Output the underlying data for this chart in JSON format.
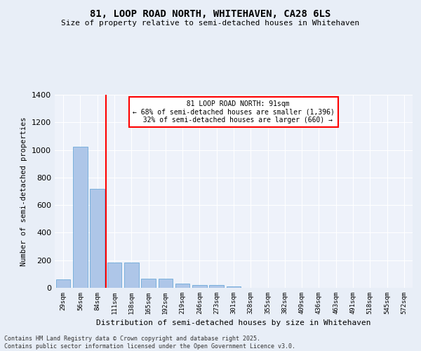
{
  "title": "81, LOOP ROAD NORTH, WHITEHAVEN, CA28 6LS",
  "subtitle": "Size of property relative to semi-detached houses in Whitehaven",
  "xlabel": "Distribution of semi-detached houses by size in Whitehaven",
  "ylabel": "Number of semi-detached properties",
  "categories": [
    "29sqm",
    "56sqm",
    "84sqm",
    "111sqm",
    "138sqm",
    "165sqm",
    "192sqm",
    "219sqm",
    "246sqm",
    "273sqm",
    "301sqm",
    "328sqm",
    "355sqm",
    "382sqm",
    "409sqm",
    "436sqm",
    "463sqm",
    "491sqm",
    "518sqm",
    "545sqm",
    "572sqm"
  ],
  "values": [
    60,
    1025,
    720,
    185,
    185,
    65,
    65,
    30,
    20,
    20,
    10,
    0,
    0,
    0,
    0,
    0,
    0,
    0,
    0,
    0,
    0
  ],
  "bar_color": "#aec6e8",
  "bar_edge_color": "#5a9fd4",
  "redline_x": 2.5,
  "redline_label": "81 LOOP ROAD NORTH: 91sqm",
  "smaller_pct": "68%",
  "smaller_n": "1,396",
  "larger_pct": "32%",
  "larger_n": "660",
  "ylim": [
    0,
    1400
  ],
  "yticks": [
    0,
    200,
    400,
    600,
    800,
    1000,
    1200,
    1400
  ],
  "bg_color": "#e8eef7",
  "plot_bg_color": "#eef2fa",
  "footer_line1": "Contains HM Land Registry data © Crown copyright and database right 2025.",
  "footer_line2": "Contains public sector information licensed under the Open Government Licence v3.0."
}
